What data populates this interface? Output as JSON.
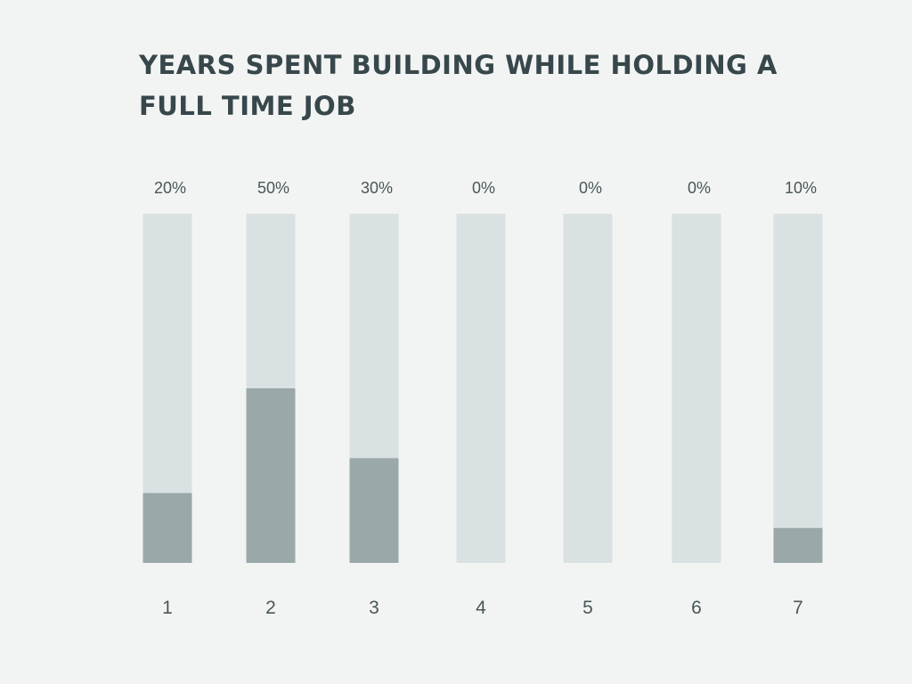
{
  "chart_data": {
    "type": "bar",
    "title": "YEARS SPENT BUILDING WHILE HOLDING A FULL TIME JOB",
    "categories": [
      "1",
      "2",
      "3",
      "4",
      "5",
      "6",
      "7"
    ],
    "values": [
      20,
      50,
      30,
      0,
      0,
      0,
      10
    ],
    "value_labels": [
      "20%",
      "50%",
      "30%",
      "0%",
      "0%",
      "0%",
      "10%"
    ],
    "unit": "%",
    "ylim": [
      0,
      100
    ],
    "grid": false,
    "legend": "none",
    "colors": {
      "track": "#d9e1e2",
      "fill": "#9aa8aa",
      "text": "#37474b",
      "background": "#f2f4f3"
    }
  }
}
